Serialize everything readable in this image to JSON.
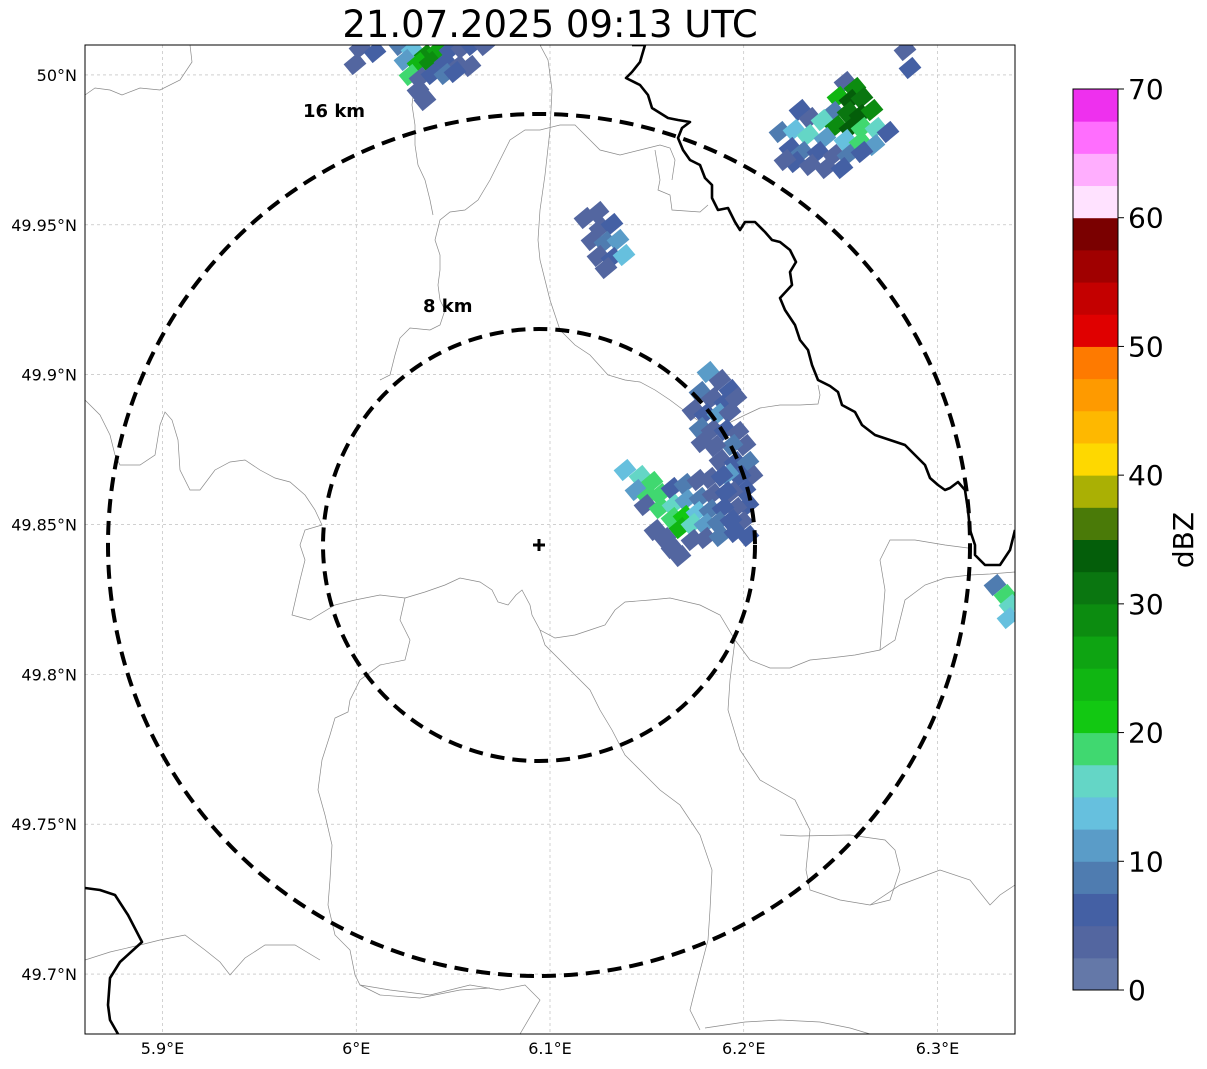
{
  "title": "21.07.2025 09:13 UTC",
  "map": {
    "lon_ticks": [
      {
        "value": 5.9,
        "label": "5.9°E"
      },
      {
        "value": 6.0,
        "label": "6°E"
      },
      {
        "value": 6.1,
        "label": "6.1°E"
      },
      {
        "value": 6.2,
        "label": "6.2°E"
      },
      {
        "value": 6.3,
        "label": "6.3°E"
      }
    ],
    "lat_ticks": [
      {
        "value": 50.0,
        "label": "50°N"
      },
      {
        "value": 49.95,
        "label": "49.95°N"
      },
      {
        "value": 49.9,
        "label": "49.9°N"
      },
      {
        "value": 49.85,
        "label": "49.85°N"
      },
      {
        "value": 49.8,
        "label": "49.8°N"
      },
      {
        "value": 49.75,
        "label": "49.75°N"
      },
      {
        "value": 49.7,
        "label": "49.7°N"
      }
    ],
    "extent": {
      "lon_min": 5.86,
      "lon_max": 6.34,
      "lat_min": 49.68,
      "lat_max": 50.01
    },
    "radar_site": {
      "lon": 6.095,
      "lat": 49.843
    },
    "rings": [
      {
        "radius_km": 8,
        "label": "8 km"
      },
      {
        "radius_km": 16,
        "label": "16 km"
      }
    ]
  },
  "colorbar": {
    "title": "dBZ",
    "min": 0,
    "max": 70,
    "ticks": [
      {
        "value": 0,
        "label": "0"
      },
      {
        "value": 10,
        "label": "10"
      },
      {
        "value": 20,
        "label": "20"
      },
      {
        "value": 30,
        "label": "30"
      },
      {
        "value": 40,
        "label": "40"
      },
      {
        "value": 50,
        "label": "50"
      },
      {
        "value": 60,
        "label": "60"
      },
      {
        "value": 70,
        "label": "70"
      }
    ],
    "colors": [
      "#6478a8",
      "#5366a0",
      "#4460a4",
      "#4f7cb0",
      "#5a9cc8",
      "#66c0de",
      "#64d6c6",
      "#40d870",
      "#12c812",
      "#10b612",
      "#0ea412",
      "#0c8c10",
      "#0a7610",
      "#045e0a",
      "#4a7a08",
      "#aab004",
      "#fed800",
      "#feb800",
      "#fe9a00",
      "#fe7a00",
      "#e00000",
      "#c40000",
      "#a00000",
      "#7a0000",
      "#ffe2ff",
      "#ffaefe",
      "#ff6efe",
      "#ee30ee"
    ]
  }
}
